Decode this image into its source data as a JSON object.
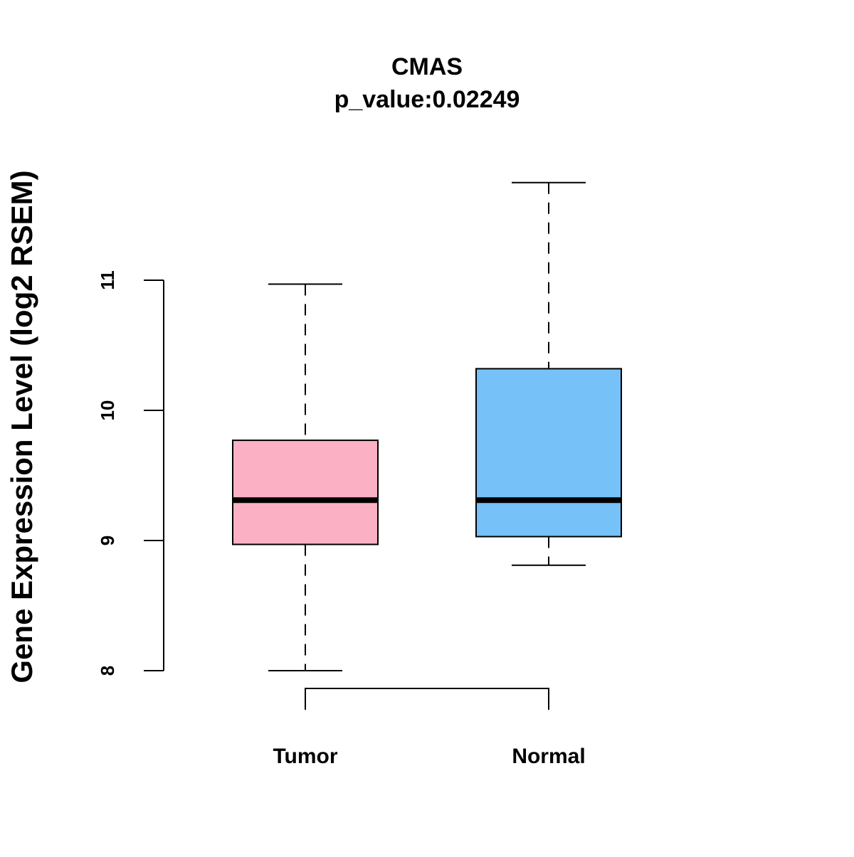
{
  "chart_data": {
    "type": "boxplot",
    "title": "CMAS",
    "subtitle": "p_value:0.02249",
    "xlabel": "",
    "ylabel": "Gene Expression Level (log2 RSEM)",
    "ylim": [
      7.7,
      11.9
    ],
    "yticks": [
      8,
      9,
      10,
      11
    ],
    "ytick_labels": [
      "8",
      "9",
      "10",
      "11"
    ],
    "grid": false,
    "categories": [
      "Tumor",
      "Normal"
    ],
    "boxes": [
      {
        "name": "Tumor",
        "min": 8.0,
        "q1": 8.97,
        "median": 9.31,
        "q3": 9.77,
        "max": 10.97,
        "color": "#FBB1C3"
      },
      {
        "name": "Normal",
        "min": 8.81,
        "q1": 9.03,
        "median": 9.31,
        "q3": 10.32,
        "max": 11.75,
        "color": "#76C1F7"
      }
    ],
    "significance_bracket": {
      "from": "Tumor",
      "to": "Normal"
    }
  }
}
